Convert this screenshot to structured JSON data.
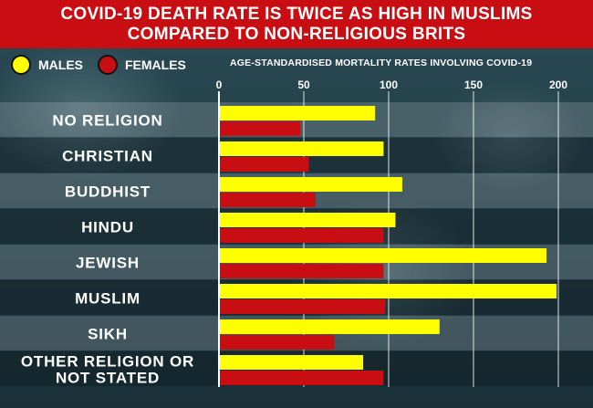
{
  "header": {
    "title_line1": "COVID-19 DEATH RATE IS TWICE AS HIGH IN MUSLIMS",
    "title_line2": "COMPARED TO NON-RELIGIOUS BRITS"
  },
  "legend": {
    "males_label": "MALES",
    "females_label": "FEMALES",
    "males_color": "#ffff00",
    "females_color": "#c80e12"
  },
  "chart_data": {
    "type": "bar",
    "orientation": "horizontal",
    "title": "AGE-STANDARDISED MORTALITY RATES INVOLVING COVID-19",
    "categories": [
      "NO RELIGION",
      "CHRISTIAN",
      "BUDDHIST",
      "HINDU",
      "JEWISH",
      "MUSLIM",
      "SIKH",
      "OTHER RELIGION OR NOT STATED"
    ],
    "series": [
      {
        "name": "MALES",
        "color": "#ffff00",
        "values": [
          92,
          97,
          108,
          104,
          193,
          199,
          130,
          85
        ]
      },
      {
        "name": "FEMALES",
        "color": "#c80e12",
        "values": [
          48,
          53,
          57,
          97,
          97,
          98,
          68,
          97
        ]
      }
    ],
    "xlim": [
      0,
      200
    ],
    "xticks": [
      0,
      50,
      100,
      150,
      200
    ],
    "grid": true,
    "legend_position": "top-left"
  }
}
